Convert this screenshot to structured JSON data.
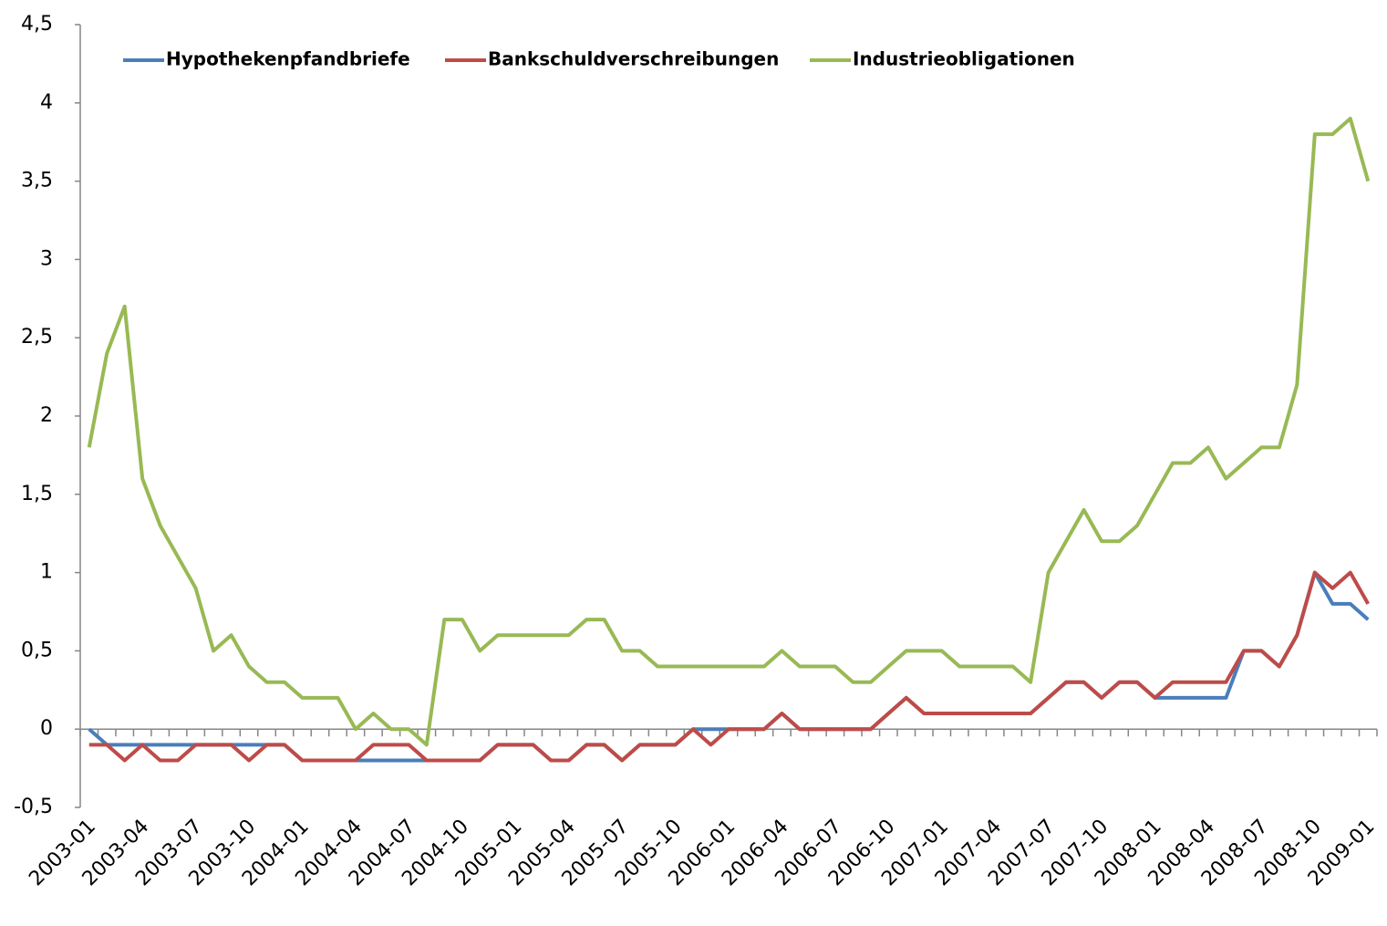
{
  "chart_data": {
    "type": "line",
    "categories": [
      "2003-01",
      null,
      null,
      "2003-04",
      null,
      null,
      "2003-07",
      null,
      null,
      "2003-10",
      null,
      null,
      "2004-01",
      null,
      null,
      "2004-04",
      null,
      null,
      "2004-07",
      null,
      null,
      "2004-10",
      null,
      null,
      "2005-01",
      null,
      null,
      "2005-04",
      null,
      null,
      "2005-07",
      null,
      null,
      "2005-10",
      null,
      null,
      "2006-01",
      null,
      null,
      "2006-04",
      null,
      null,
      "2006-07",
      null,
      null,
      "2006-10",
      null,
      null,
      "2007-01",
      null,
      null,
      "2007-04",
      null,
      null,
      "2007-07",
      null,
      null,
      "2007-10",
      null,
      null,
      "2008-01",
      null,
      null,
      "2008-04",
      null,
      null,
      "2008-07",
      null,
      null,
      "2008-10",
      null,
      null,
      "2009-01"
    ],
    "series": [
      {
        "name": "Hypothekenpfandbriefe",
        "color": "#4a7ebb",
        "values": [
          0,
          -0.1,
          -0.1,
          -0.1,
          -0.1,
          -0.1,
          -0.1,
          -0.1,
          -0.1,
          -0.1,
          -0.1,
          -0.1,
          -0.2,
          -0.2,
          -0.2,
          -0.2,
          -0.2,
          -0.2,
          -0.2,
          -0.2,
          -0.2,
          -0.2,
          -0.2,
          -0.1,
          -0.1,
          -0.1,
          -0.2,
          -0.2,
          -0.1,
          -0.1,
          -0.2,
          -0.1,
          -0.1,
          -0.1,
          0,
          0,
          0,
          0,
          0,
          0.1,
          0,
          0,
          0,
          0,
          0,
          0.1,
          0.2,
          0.1,
          0.1,
          0.1,
          0.1,
          0.1,
          0.1,
          0.1,
          0.2,
          0.3,
          0.3,
          0.2,
          0.3,
          0.3,
          0.2,
          0.2,
          0.2,
          0.2,
          0.2,
          0.5,
          0.5,
          0.4,
          0.6,
          1.0,
          0.8,
          0.8,
          0.7
        ]
      },
      {
        "name": "Bankschuldverschreibungen",
        "color": "#be4b48",
        "values": [
          -0.1,
          -0.1,
          -0.2,
          -0.1,
          -0.2,
          -0.2,
          -0.1,
          -0.1,
          -0.1,
          -0.2,
          -0.1,
          -0.1,
          -0.2,
          -0.2,
          -0.2,
          -0.2,
          -0.1,
          -0.1,
          -0.1,
          -0.2,
          -0.2,
          -0.2,
          -0.2,
          -0.1,
          -0.1,
          -0.1,
          -0.2,
          -0.2,
          -0.1,
          -0.1,
          -0.2,
          -0.1,
          -0.1,
          -0.1,
          0,
          -0.1,
          0,
          0,
          0,
          0.1,
          0,
          0,
          0,
          0,
          0,
          0.1,
          0.2,
          0.1,
          0.1,
          0.1,
          0.1,
          0.1,
          0.1,
          0.1,
          0.2,
          0.3,
          0.3,
          0.2,
          0.3,
          0.3,
          0.2,
          0.3,
          0.3,
          0.3,
          0.3,
          0.5,
          0.5,
          0.4,
          0.6,
          1.0,
          0.9,
          1.0,
          0.8
        ]
      },
      {
        "name": "Industrieobligationen",
        "color": "#98b954",
        "values": [
          1.8,
          2.4,
          2.7,
          1.6,
          1.3,
          1.1,
          0.9,
          0.5,
          0.6,
          0.4,
          0.3,
          0.3,
          0.2,
          0.2,
          0.2,
          0,
          0.1,
          0,
          0,
          -0.1,
          0.7,
          0.7,
          0.5,
          0.6,
          0.6,
          0.6,
          0.6,
          0.6,
          0.7,
          0.7,
          0.5,
          0.5,
          0.4,
          0.4,
          0.4,
          0.4,
          0.4,
          0.4,
          0.4,
          0.5,
          0.4,
          0.4,
          0.4,
          0.3,
          0.3,
          0.4,
          0.5,
          0.5,
          0.5,
          0.4,
          0.4,
          0.4,
          0.4,
          0.3,
          1.0,
          1.2,
          1.4,
          1.2,
          1.2,
          1.3,
          1.5,
          1.7,
          1.7,
          1.8,
          1.6,
          1.7,
          1.8,
          1.8,
          2.2,
          3.8,
          3.8,
          3.9,
          3.5
        ]
      }
    ],
    "ylim": [
      -0.5,
      4.5
    ],
    "yticks": [
      {
        "value": -0.5,
        "label": "-0,5"
      },
      0,
      {
        "value": 0.5,
        "label": "0,5"
      },
      1,
      {
        "value": 1.5,
        "label": "1,5"
      },
      2,
      {
        "value": 2.5,
        "label": "2,5"
      },
      3,
      {
        "value": 3.5,
        "label": "3,5"
      },
      4,
      {
        "value": 4.5,
        "label": "4,5"
      }
    ],
    "legend": "top",
    "grid": false
  }
}
